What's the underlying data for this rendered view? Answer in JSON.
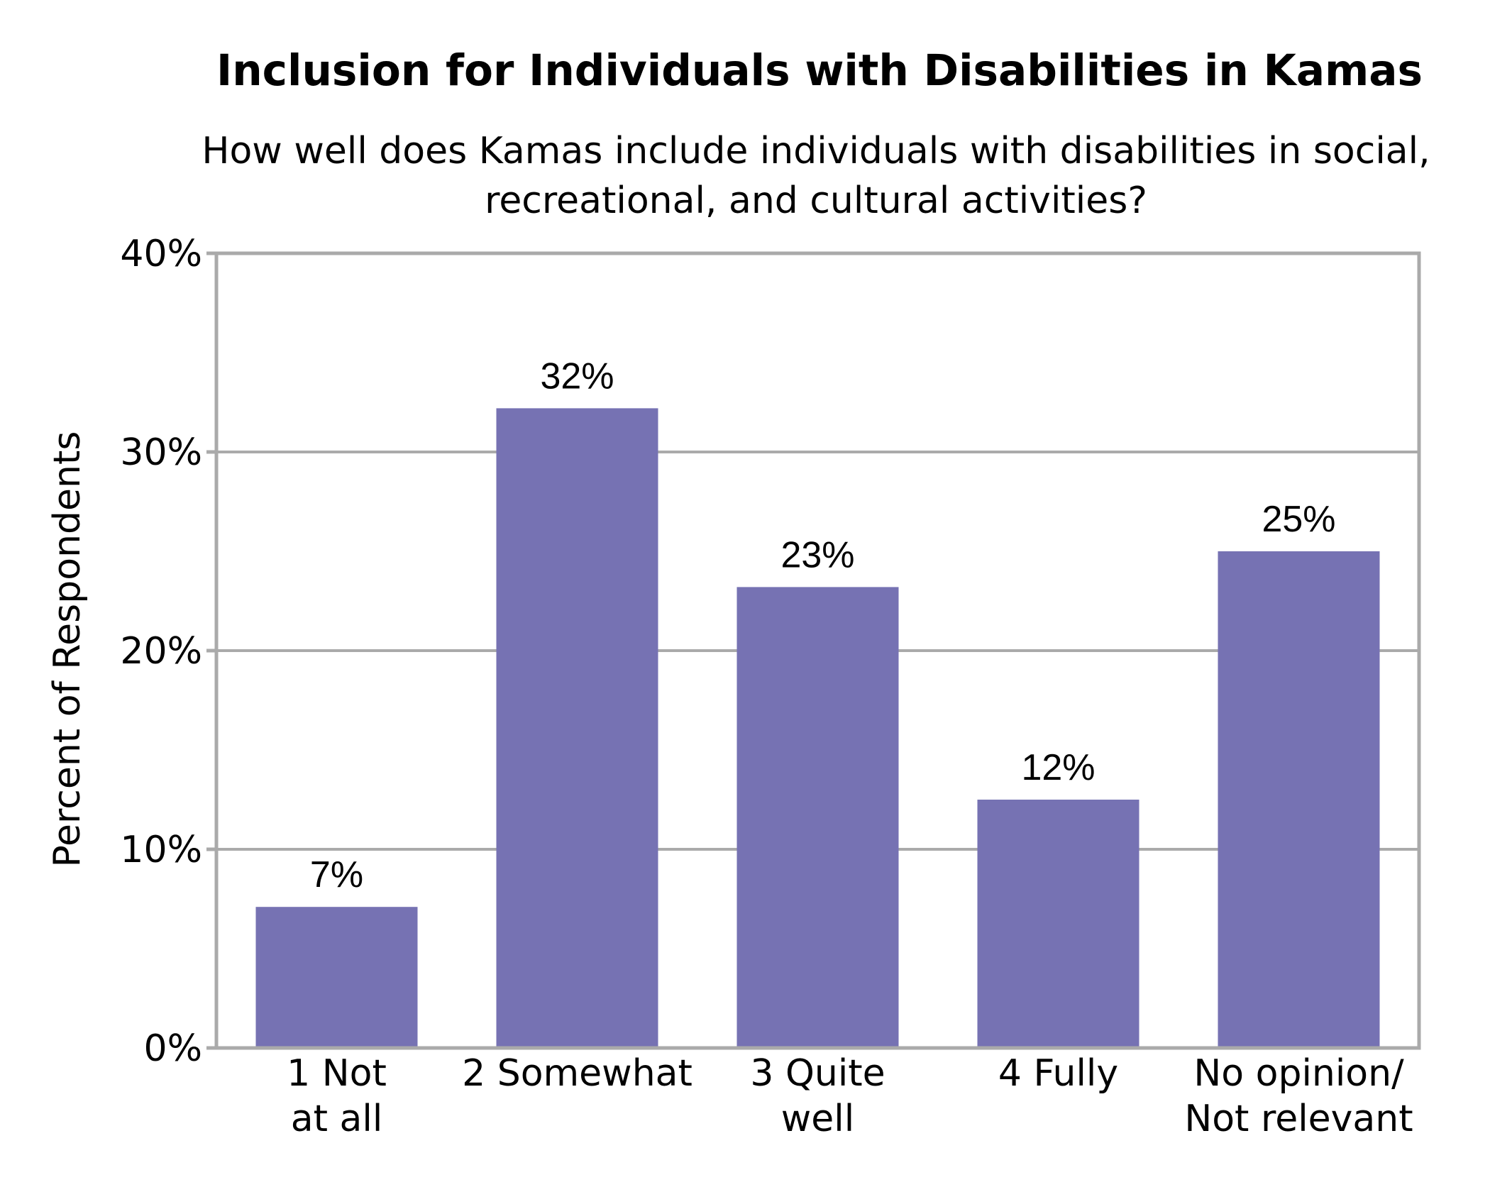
{
  "chart_data": {
    "type": "bar",
    "title": "Inclusion for Individuals with Disabilities in Kamas",
    "subtitle": [
      "How well does Kamas include individuals with disabilities in social,",
      "recreational, and cultural activities?"
    ],
    "ylabel": "Percent of Respondents",
    "xlabel": "",
    "ylim": [
      0,
      40
    ],
    "yticks": [
      {
        "value": 0,
        "label": "0%"
      },
      {
        "value": 10,
        "label": "10%"
      },
      {
        "value": 20,
        "label": "20%"
      },
      {
        "value": 30,
        "label": "30%"
      },
      {
        "value": 40,
        "label": "40%"
      }
    ],
    "grid": true,
    "categories": [
      [
        "1 Not",
        "at all"
      ],
      [
        "2 Somewhat"
      ],
      [
        "3 Quite",
        "well"
      ],
      [
        "4 Fully"
      ],
      [
        "No opinion/",
        "Not relevant"
      ]
    ],
    "values": [
      7.1,
      32.2,
      23.2,
      12.5,
      25.0
    ],
    "data_labels": [
      "7%",
      "32%",
      "23%",
      "12%",
      "25%"
    ],
    "colors": {
      "bar": "#7672B3",
      "grid": "#AAAAAA",
      "frame": "#AAAAAA"
    }
  }
}
